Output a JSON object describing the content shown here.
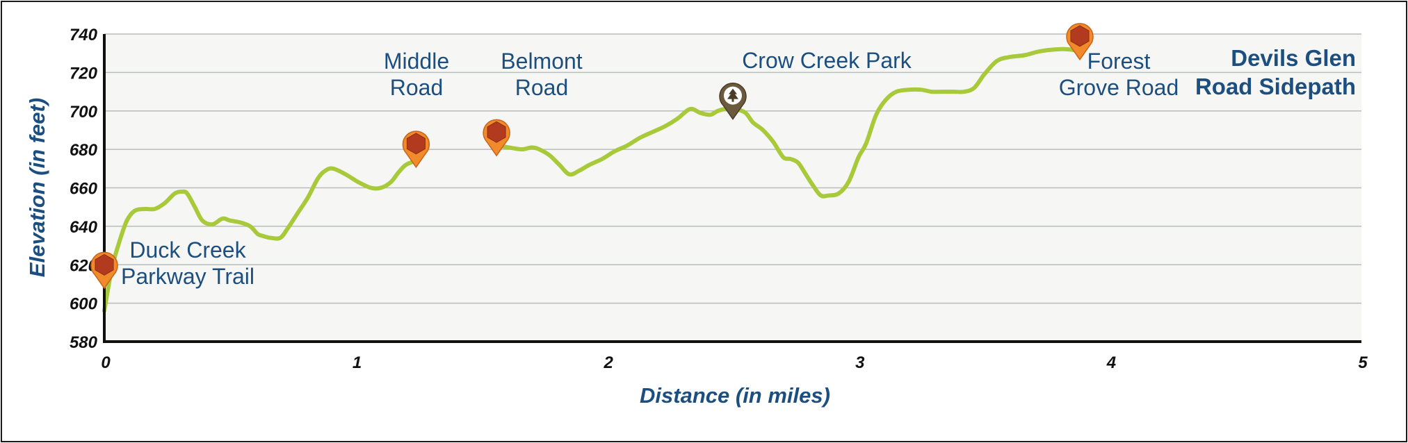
{
  "chart_data": {
    "type": "line",
    "title_lines": [
      "Devils Glen",
      "Road Sidepath"
    ],
    "xlabel": "Distance (in miles)",
    "ylabel": "Elevation (in feet)",
    "xlim": [
      0,
      5
    ],
    "ylim": [
      580,
      740
    ],
    "x_ticks": [
      "0",
      "1",
      "2",
      "3",
      "4",
      "5"
    ],
    "y_ticks": [
      "580",
      "600",
      "620",
      "640",
      "660",
      "680",
      "700",
      "720",
      "740"
    ],
    "grid": true,
    "line_color": "#a8c93a",
    "plot_bg": "#f6f7f5",
    "grid_color": "#b9bcbd",
    "axis_color": "#111111",
    "segments": [
      {
        "x": [
          0.0,
          0.03,
          0.06,
          0.09,
          0.12,
          0.16,
          0.2,
          0.24,
          0.28,
          0.31,
          0.33,
          0.36,
          0.39,
          0.43,
          0.47,
          0.5,
          0.54,
          0.58,
          0.61,
          0.63,
          0.66,
          0.7,
          0.73,
          0.77,
          0.81,
          0.85,
          0.88,
          0.91,
          0.96,
          1.01,
          1.06,
          1.1,
          1.14,
          1.17,
          1.2,
          1.24
        ],
        "y": [
          596,
          618,
          632,
          643,
          648,
          649,
          649,
          652,
          657,
          658,
          657,
          650,
          643,
          641,
          644,
          643,
          642,
          640,
          636,
          635,
          634,
          634,
          639,
          647,
          655,
          665,
          669,
          670,
          667,
          663,
          660,
          660,
          663,
          668,
          672,
          674
        ]
      },
      {
        "x": [
          1.56,
          1.61,
          1.66,
          1.7,
          1.73,
          1.77,
          1.81,
          1.85,
          1.89,
          1.93,
          1.98,
          2.03,
          2.08,
          2.13,
          2.18,
          2.23,
          2.28,
          2.33,
          2.37,
          2.41,
          2.44,
          2.47,
          2.51,
          2.55,
          2.58,
          2.62,
          2.66,
          2.7,
          2.73,
          2.76,
          2.79,
          2.82,
          2.85,
          2.88,
          2.92,
          2.96,
          3.0,
          3.03,
          3.07,
          3.11,
          3.15,
          3.2,
          3.25,
          3.29,
          3.33,
          3.38,
          3.42,
          3.46,
          3.5,
          3.55,
          3.6,
          3.66,
          3.72,
          3.78,
          3.84,
          3.88
        ],
        "y": [
          682,
          681,
          680,
          681,
          680,
          677,
          672,
          667,
          669,
          672,
          675,
          679,
          682,
          686,
          689,
          692,
          696,
          701,
          699,
          698,
          700,
          701,
          701,
          699,
          694,
          690,
          684,
          676,
          675,
          673,
          667,
          661,
          656,
          656,
          657,
          663,
          676,
          683,
          698,
          706,
          710,
          711,
          711,
          710,
          710,
          710,
          710,
          712,
          719,
          726,
          728,
          729,
          731,
          732,
          732,
          731
        ]
      }
    ],
    "markers": [
      {
        "x": 0.0,
        "y": 620,
        "type": "trailhead",
        "label_lines": [
          "Duck Creek",
          "Parkway Trail"
        ]
      },
      {
        "x": 1.24,
        "y": 683,
        "type": "trailhead",
        "label_lines": [
          "Middle",
          "Road"
        ]
      },
      {
        "x": 1.56,
        "y": 689,
        "type": "trailhead",
        "label_lines": [
          "Belmont",
          "Road"
        ]
      },
      {
        "x": 2.5,
        "y": 708,
        "type": "park",
        "label_lines": [
          "Crow Creek Park"
        ]
      },
      {
        "x": 3.88,
        "y": 739,
        "type": "trailhead",
        "label_lines": [
          "Forest",
          "Grove Road"
        ]
      }
    ]
  }
}
